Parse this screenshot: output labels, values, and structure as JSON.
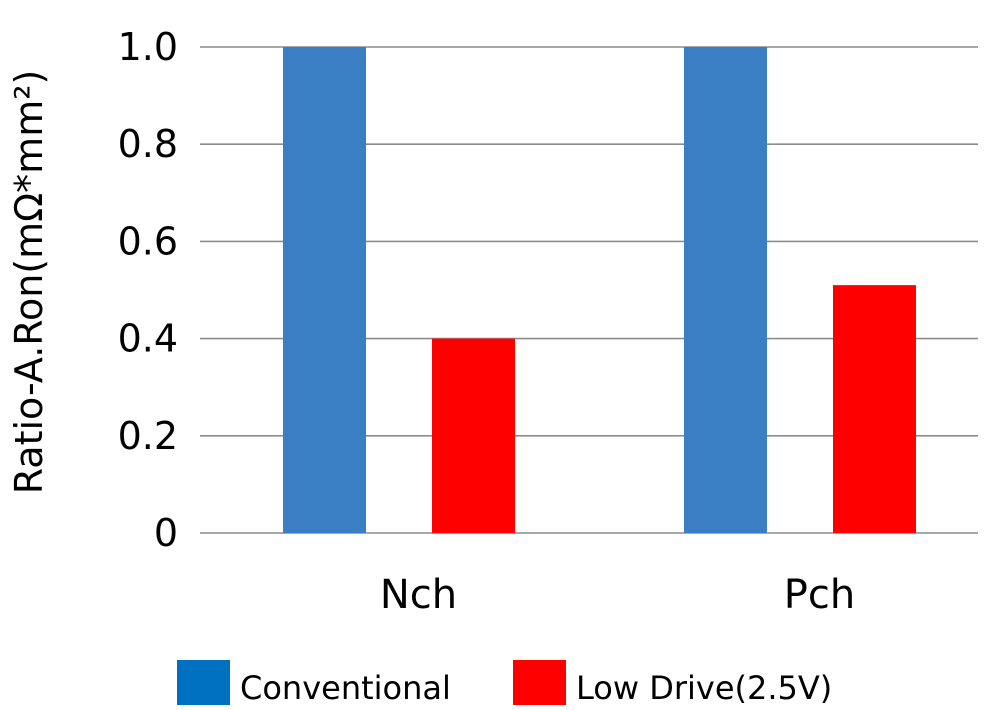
{
  "chart_data": {
    "type": "bar",
    "categories": [
      "Nch",
      "Pch"
    ],
    "series": [
      {
        "name": "Conventional",
        "values": [
          1.0,
          1.0
        ],
        "color": "#3A7FC4",
        "legend_color": "#0070C0"
      },
      {
        "name": "Low Drive(2.5V)",
        "values": [
          0.4,
          0.51
        ],
        "color": "#FF0000",
        "legend_color": "#FF0000"
      }
    ],
    "title": "",
    "xlabel": "",
    "ylabel": "Ratio-A.Ron(mΩ*mm²)",
    "ylim": [
      0,
      1.0
    ],
    "yticks": [
      "0",
      "0.2",
      "0.4",
      "0.6",
      "0.8",
      "1.0"
    ],
    "grid": true,
    "legend_position": "bottom"
  }
}
